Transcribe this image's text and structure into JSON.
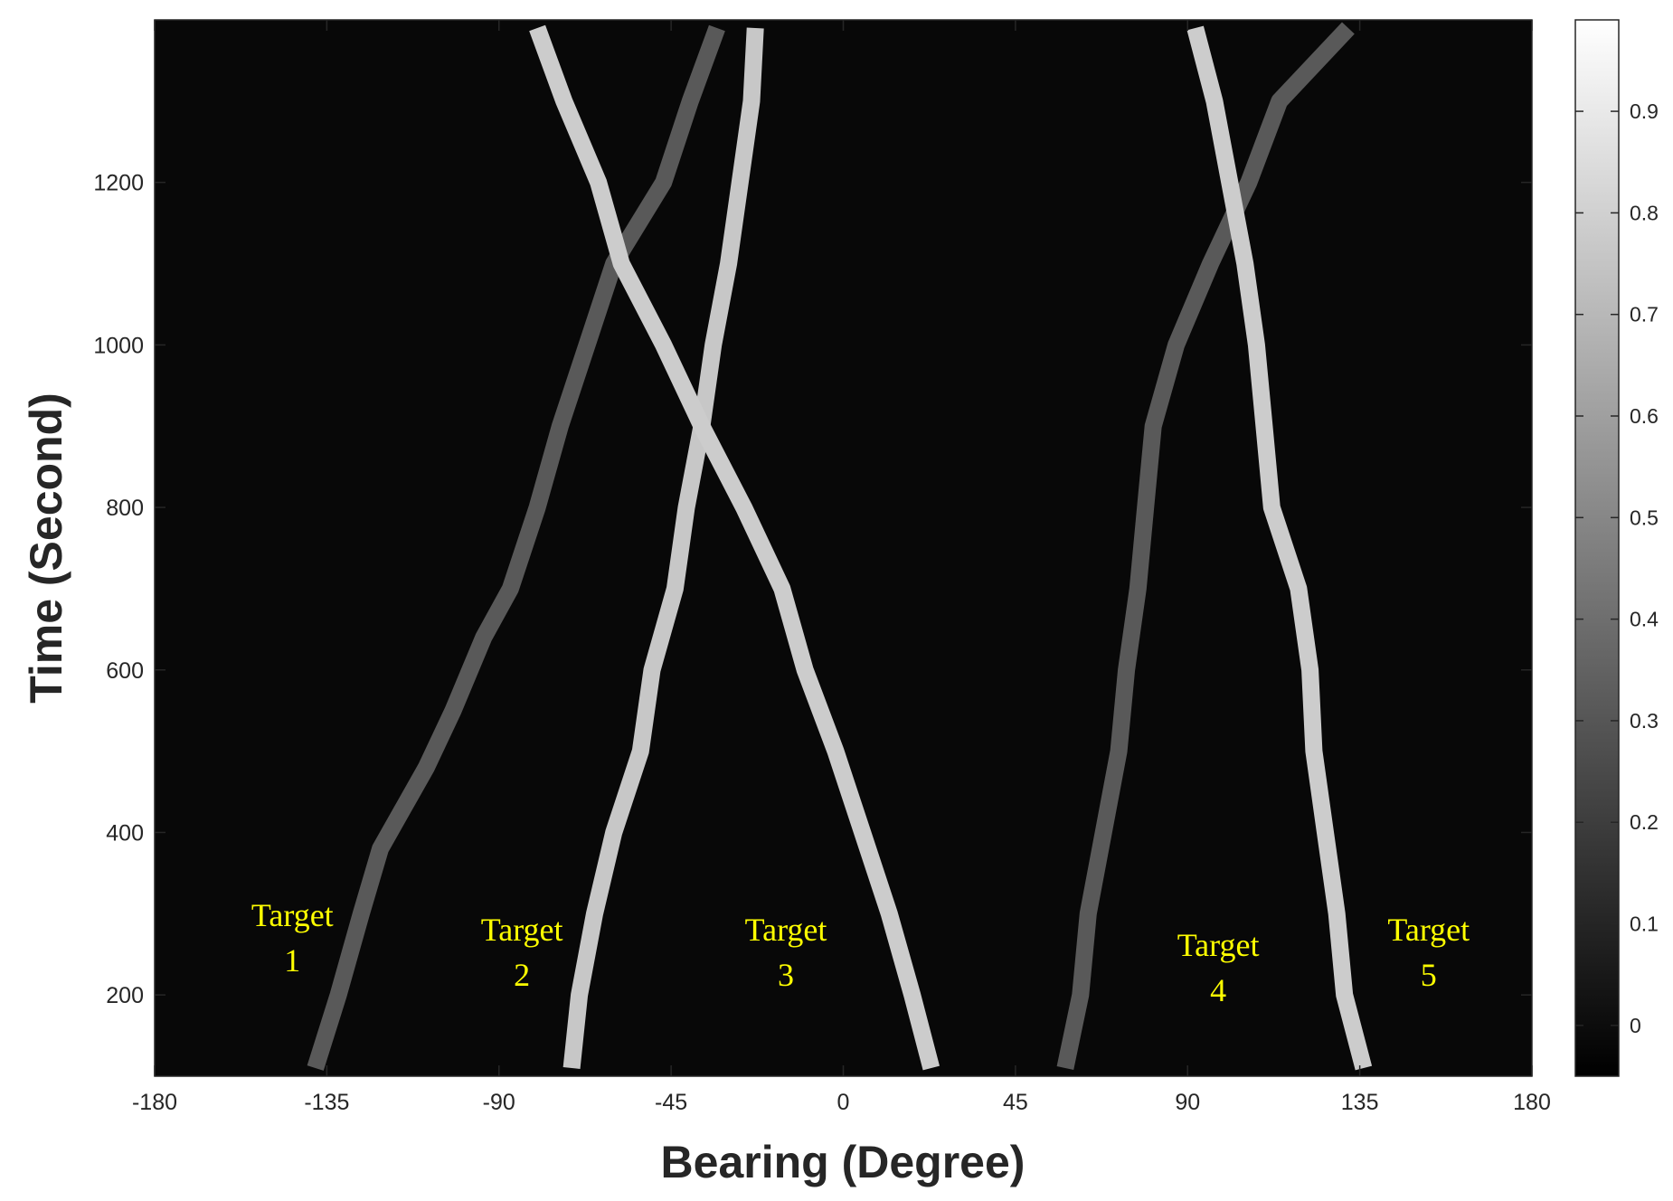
{
  "chart_data": {
    "type": "heatmap",
    "xlabel": "Bearing (Degree)",
    "ylabel": "Time (Second)",
    "xlim": [
      -180,
      180
    ],
    "ylim": [
      100,
      1400
    ],
    "xticks": [
      -180,
      -135,
      -90,
      -45,
      0,
      45,
      90,
      135,
      180
    ],
    "yticks": [
      200,
      400,
      600,
      800,
      1000,
      1200
    ],
    "grid": false,
    "background_value": 0.03,
    "colormap": "gray",
    "colorbar": {
      "range": [
        -0.05,
        0.99
      ],
      "ticks": [
        0,
        0.1,
        0.2,
        0.3,
        0.4,
        0.5,
        0.6,
        0.7,
        0.8,
        0.9
      ]
    },
    "series": [
      {
        "intensity": 0.35,
        "points": [
          [
            -138,
            110
          ],
          [
            -132,
            200
          ],
          [
            -126,
            300
          ],
          [
            -121,
            380
          ],
          [
            -115,
            430
          ],
          [
            -109,
            480
          ],
          [
            -102,
            550
          ],
          [
            -94,
            640
          ],
          [
            -87,
            700
          ],
          [
            -80,
            800
          ],
          [
            -74,
            900
          ],
          [
            -67,
            1000
          ],
          [
            -60,
            1100
          ],
          [
            -47,
            1200
          ],
          [
            -40,
            1300
          ],
          [
            -33,
            1390
          ]
        ]
      },
      {
        "intensity": 0.78,
        "points": [
          [
            -71,
            110
          ],
          [
            -69,
            200
          ],
          [
            -65,
            300
          ],
          [
            -60,
            400
          ],
          [
            -53,
            500
          ],
          [
            -50,
            600
          ],
          [
            -44,
            700
          ],
          [
            -41,
            800
          ],
          [
            -37,
            900
          ],
          [
            -34,
            1000
          ],
          [
            -30,
            1100
          ],
          [
            -27,
            1200
          ],
          [
            -24,
            1300
          ],
          [
            -23,
            1390
          ]
        ]
      },
      {
        "intensity": 0.8,
        "points": [
          [
            -80,
            1390
          ],
          [
            -73,
            1300
          ],
          [
            -64,
            1200
          ],
          [
            -58,
            1100
          ],
          [
            -47,
            1000
          ],
          [
            -37,
            900
          ],
          [
            -26,
            800
          ],
          [
            -16,
            700
          ],
          [
            -10,
            600
          ],
          [
            -2,
            500
          ],
          [
            5,
            400
          ],
          [
            12,
            300
          ],
          [
            18,
            200
          ],
          [
            23,
            110
          ]
        ]
      },
      {
        "intensity": 0.35,
        "points": [
          [
            58,
            110
          ],
          [
            62,
            200
          ],
          [
            64,
            300
          ],
          [
            68,
            400
          ],
          [
            72,
            500
          ],
          [
            74,
            600
          ],
          [
            77,
            700
          ],
          [
            79,
            800
          ],
          [
            81,
            900
          ],
          [
            87,
            1000
          ],
          [
            96,
            1100
          ],
          [
            106,
            1200
          ],
          [
            114,
            1300
          ],
          [
            132,
            1390
          ]
        ]
      },
      {
        "intensity": 0.8,
        "points": [
          [
            92,
            1390
          ],
          [
            97,
            1300
          ],
          [
            101,
            1200
          ],
          [
            105,
            1100
          ],
          [
            108,
            1000
          ],
          [
            110,
            900
          ],
          [
            112,
            800
          ],
          [
            119,
            700
          ],
          [
            122,
            600
          ],
          [
            123,
            500
          ],
          [
            126,
            400
          ],
          [
            129,
            300
          ],
          [
            131,
            200
          ],
          [
            136,
            110
          ]
        ]
      }
    ],
    "annotations": [
      {
        "line1": "Target",
        "line2": "1",
        "x": -144,
        "y": 285
      },
      {
        "line1": "Target",
        "line2": "2",
        "x": -84,
        "y": 267
      },
      {
        "line1": "Target",
        "line2": "3",
        "x": -15,
        "y": 267
      },
      {
        "line1": "Target",
        "line2": "4",
        "x": 98,
        "y": 248
      },
      {
        "line1": "Target",
        "line2": "5",
        "x": 153,
        "y": 267
      }
    ]
  }
}
